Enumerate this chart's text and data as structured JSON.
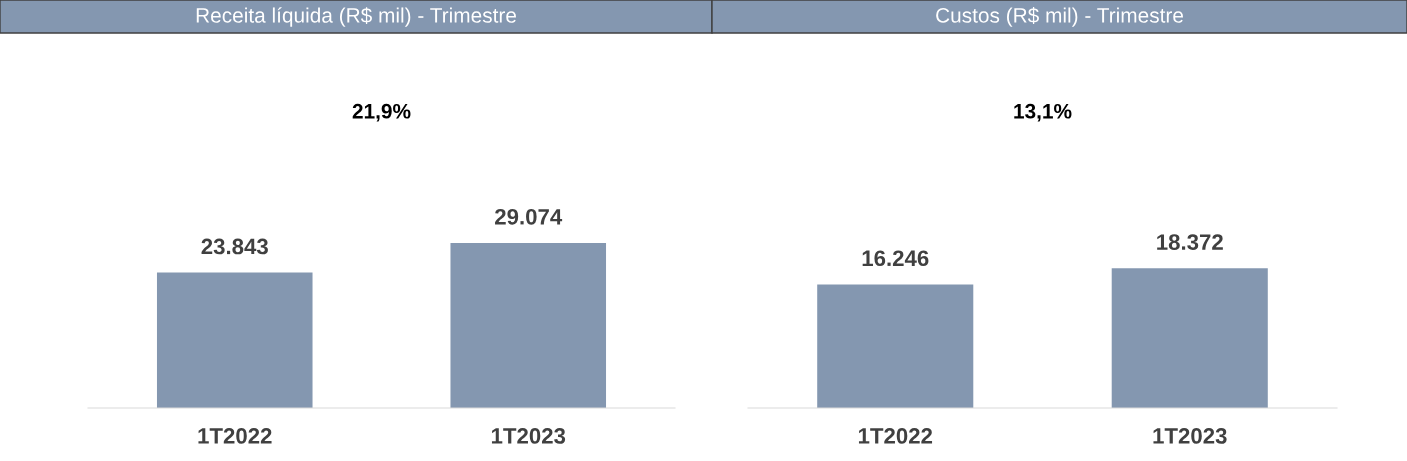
{
  "chart_data": [
    {
      "type": "bar",
      "title": "Receita líquida (R$ mil) - Trimestre",
      "categories": [
        "1T2022",
        "1T2023"
      ],
      "values": [
        23843,
        29074
      ],
      "value_labels": [
        "23.843",
        "29.074"
      ],
      "color": "#8497b0",
      "annotations": [
        "21,9%"
      ],
      "grid": false,
      "legend": false
    },
    {
      "type": "bar",
      "title": "Custos (R$ mil) - Trimestre",
      "categories": [
        "1T2022",
        "1T2023"
      ],
      "values": [
        16246,
        18372
      ],
      "value_labels": [
        "16.246",
        "18.372"
      ],
      "color": "#8497b0",
      "annotations": [
        "13,1%"
      ],
      "grid": false,
      "legend": false
    }
  ]
}
